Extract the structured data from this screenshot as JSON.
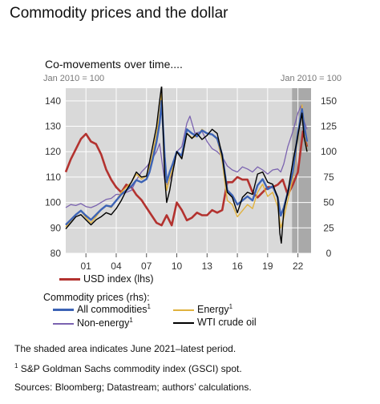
{
  "title": "Commodity prices and the dollar",
  "subtitle": "Co-movements over time....",
  "chart_data": {
    "type": "line",
    "left_unit": "Jan 2010 = 100",
    "right_unit": "Jan 2010 = 100",
    "x_tick_labels": [
      "01",
      "04",
      "07",
      "10",
      "13",
      "16",
      "19",
      "22"
    ],
    "x_tick_years": [
      2001,
      2004,
      2007,
      2010,
      2013,
      2016,
      2019,
      2022
    ],
    "xlim": [
      1999.0,
      2023.3
    ],
    "left_axis": {
      "ticks": [
        80,
        90,
        100,
        110,
        120,
        130,
        140
      ],
      "ylim": [
        80,
        145
      ]
    },
    "right_axis": {
      "ticks": [
        0,
        25,
        50,
        75,
        100,
        125,
        150
      ],
      "ylim": [
        0,
        162.5
      ]
    },
    "shaded_region": {
      "x0": 2021.42,
      "x1": 2023.3,
      "note": "June 2021-latest"
    },
    "grid": true,
    "series": [
      {
        "name": "USD index",
        "axis": "lhs",
        "color": "#b3322f",
        "x": [
          1999.0,
          1999.5,
          2000.0,
          2000.5,
          2001.0,
          2001.5,
          2002.0,
          2002.5,
          2003.0,
          2003.5,
          2004.0,
          2004.5,
          2005.0,
          2005.5,
          2006.0,
          2006.5,
          2007.0,
          2007.5,
          2008.0,
          2008.5,
          2009.0,
          2009.5,
          2010.0,
          2010.5,
          2011.0,
          2011.5,
          2012.0,
          2012.5,
          2013.0,
          2013.5,
          2014.0,
          2014.5,
          2015.0,
          2015.5,
          2016.0,
          2016.5,
          2017.0,
          2017.5,
          2018.0,
          2018.5,
          2019.0,
          2019.5,
          2020.0,
          2020.5,
          2021.0,
          2021.5,
          2022.0,
          2022.5,
          2022.9
        ],
        "values": [
          112,
          117,
          121,
          125,
          127,
          124,
          123,
          119,
          113,
          109,
          106,
          104,
          107,
          106,
          103,
          101,
          98,
          95,
          92,
          91,
          95,
          91,
          100,
          97,
          93,
          94,
          96,
          95,
          95,
          97,
          96,
          97,
          108,
          108,
          110,
          109,
          109,
          104,
          102,
          104,
          106,
          106,
          107,
          109,
          103,
          107,
          112,
          128,
          122
        ]
      },
      {
        "name": "All commodities",
        "axis": "rhs",
        "color": "#3c63b5",
        "x": [
          1999.0,
          1999.5,
          2000.0,
          2000.5,
          2001.0,
          2001.5,
          2002.0,
          2002.5,
          2003.0,
          2003.5,
          2004.0,
          2004.5,
          2005.0,
          2005.5,
          2006.0,
          2006.5,
          2007.0,
          2007.3,
          2007.6,
          2008.0,
          2008.3,
          2008.5,
          2008.8,
          2009.0,
          2009.3,
          2009.6,
          2010.0,
          2010.5,
          2011.0,
          2011.5,
          2012.0,
          2012.5,
          2013.0,
          2013.5,
          2014.0,
          2014.5,
          2015.0,
          2015.5,
          2016.0,
          2016.5,
          2017.0,
          2017.5,
          2018.0,
          2018.5,
          2019.0,
          2019.5,
          2020.0,
          2020.3,
          2020.6,
          2021.0,
          2021.5,
          2022.0,
          2022.4,
          2022.6,
          2022.9
        ],
        "values": [
          28,
          33,
          38,
          42,
          37,
          33,
          38,
          43,
          47,
          46,
          52,
          58,
          62,
          66,
          72,
          70,
          73,
          80,
          92,
          110,
          128,
          150,
          95,
          70,
          80,
          88,
          100,
          96,
          122,
          118,
          115,
          121,
          118,
          117,
          113,
          97,
          62,
          57,
          48,
          52,
          56,
          52,
          67,
          73,
          63,
          66,
          55,
          37,
          45,
          60,
          80,
          118,
          142,
          126,
          110
        ]
      },
      {
        "name": "Energy",
        "axis": "rhs",
        "color": "#e0b23f",
        "x": [
          1999.0,
          1999.5,
          2000.0,
          2000.5,
          2001.0,
          2001.5,
          2002.0,
          2002.5,
          2003.0,
          2003.5,
          2004.0,
          2004.5,
          2005.0,
          2005.5,
          2006.0,
          2006.5,
          2007.0,
          2007.3,
          2007.6,
          2008.0,
          2008.3,
          2008.5,
          2008.8,
          2009.0,
          2009.3,
          2009.6,
          2010.0,
          2010.5,
          2011.0,
          2011.5,
          2012.0,
          2012.5,
          2013.0,
          2013.5,
          2014.0,
          2014.5,
          2015.0,
          2015.5,
          2016.0,
          2016.5,
          2017.0,
          2017.5,
          2018.0,
          2018.5,
          2019.0,
          2019.5,
          2020.0,
          2020.3,
          2020.6,
          2021.0,
          2021.5,
          2022.0,
          2022.4,
          2022.6,
          2022.9
        ],
        "values": [
          26,
          32,
          38,
          42,
          35,
          30,
          36,
          43,
          47,
          45,
          52,
          60,
          65,
          70,
          78,
          73,
          76,
          85,
          98,
          118,
          138,
          158,
          90,
          62,
          74,
          84,
          100,
          94,
          118,
          114,
          115,
          122,
          118,
          117,
          112,
          90,
          52,
          48,
          36,
          42,
          48,
          44,
          60,
          68,
          56,
          60,
          46,
          25,
          35,
          52,
          74,
          112,
          146,
          122,
          100
        ]
      },
      {
        "name": "Non-energy",
        "axis": "rhs",
        "color": "#7b63b0",
        "x": [
          1999.0,
          1999.5,
          2000.0,
          2000.5,
          2001.0,
          2001.5,
          2002.0,
          2002.5,
          2003.0,
          2003.5,
          2004.0,
          2004.5,
          2005.0,
          2005.5,
          2006.0,
          2006.5,
          2007.0,
          2007.5,
          2008.0,
          2008.3,
          2008.6,
          2008.9,
          2009.2,
          2009.6,
          2010.0,
          2010.5,
          2011.0,
          2011.3,
          2011.8,
          2012.5,
          2013.0,
          2013.5,
          2014.0,
          2014.5,
          2015.0,
          2015.5,
          2016.0,
          2016.5,
          2017.0,
          2017.5,
          2018.0,
          2018.5,
          2019.0,
          2019.5,
          2020.0,
          2020.3,
          2020.6,
          2021.0,
          2021.5,
          2022.0,
          2022.3,
          2022.6,
          2022.9
        ],
        "values": [
          45,
          48,
          47,
          49,
          46,
          45,
          47,
          50,
          53,
          54,
          58,
          58,
          60,
          62,
          72,
          80,
          85,
          92,
          100,
          108,
          85,
          66,
          70,
          80,
          100,
          105,
          128,
          135,
          118,
          120,
          110,
          103,
          100,
          95,
          86,
          82,
          80,
          85,
          83,
          80,
          85,
          82,
          78,
          82,
          83,
          80,
          88,
          105,
          120,
          138,
          145,
          130,
          122
        ]
      },
      {
        "name": "WTI crude oil",
        "axis": "rhs",
        "color": "#000000",
        "x": [
          1999.0,
          1999.5,
          2000.0,
          2000.5,
          2001.0,
          2001.5,
          2002.0,
          2002.5,
          2003.0,
          2003.5,
          2004.0,
          2004.5,
          2005.0,
          2005.5,
          2006.0,
          2006.5,
          2007.0,
          2007.3,
          2007.6,
          2008.0,
          2008.3,
          2008.5,
          2008.8,
          2009.0,
          2009.3,
          2009.6,
          2010.0,
          2010.5,
          2011.0,
          2011.5,
          2012.0,
          2012.5,
          2013.0,
          2013.5,
          2014.0,
          2014.5,
          2015.0,
          2015.5,
          2016.0,
          2016.5,
          2017.0,
          2017.5,
          2018.0,
          2018.5,
          2019.0,
          2019.5,
          2020.0,
          2020.2,
          2020.35,
          2020.6,
          2021.0,
          2021.5,
          2022.0,
          2022.4,
          2022.6,
          2022.9
        ],
        "values": [
          24,
          30,
          36,
          38,
          33,
          28,
          33,
          36,
          40,
          38,
          44,
          52,
          62,
          70,
          80,
          75,
          76,
          90,
          105,
          125,
          150,
          165,
          75,
          50,
          62,
          80,
          100,
          93,
          118,
          113,
          118,
          112,
          116,
          122,
          118,
          96,
          60,
          55,
          40,
          55,
          60,
          58,
          78,
          80,
          70,
          68,
          55,
          20,
          10,
          42,
          60,
          90,
          116,
          138,
          115,
          100
        ]
      }
    ]
  },
  "legend": {
    "usd_label": "USD index (lhs)",
    "group_label": "Commodity prices (rhs):",
    "all_label": "All commodities",
    "energy_label": "Energy",
    "nonenergy_label": "Non-energy",
    "wti_label": "WTI crude oil",
    "footnote_marker": "1"
  },
  "notes": {
    "shaded": "The shaded area indicates June 2021–latest period.",
    "footnote_marker": "1",
    "footnote": "S&P Goldman Sachs commodity index (GSCI) spot.",
    "sources": "Sources: Bloomberg; Datastream; authors’ calculations."
  }
}
